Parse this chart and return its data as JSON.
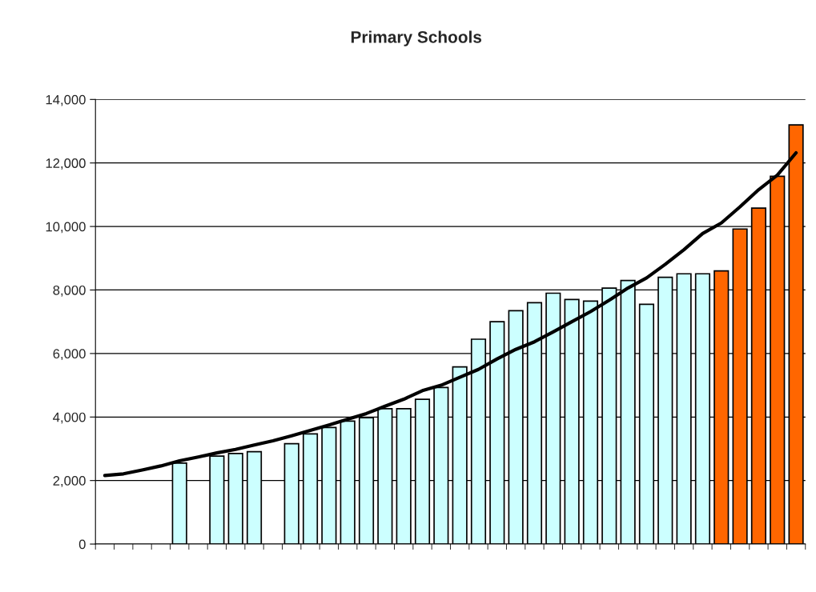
{
  "chart_data": {
    "type": "bar",
    "title": "Primary Schools",
    "categories": [
      null,
      null,
      null,
      null,
      null,
      null,
      null,
      null,
      null,
      null,
      null,
      null,
      null,
      null,
      null,
      null,
      null,
      null,
      null,
      null,
      null,
      null,
      null,
      null,
      null,
      null,
      null,
      null,
      null,
      null,
      null,
      null,
      null,
      null,
      null,
      null,
      null,
      null
    ],
    "series": [
      {
        "colors": [
          "#ccffff",
          "#ccffff",
          "#ccffff",
          "#ccffff",
          "#ccffff",
          "#ccffff",
          "#ccffff",
          "#ccffff",
          "#ccffff",
          "#ccffff",
          "#ccffff",
          "#ccffff",
          "#ccffff",
          "#ccffff",
          "#ccffff",
          "#ccffff",
          "#ccffff",
          "#ccffff",
          "#ccffff",
          "#ccffff",
          "#ccffff",
          "#ccffff",
          "#ccffff",
          "#ccffff",
          "#ccffff",
          "#ccffff",
          "#ccffff",
          "#ccffff",
          "#ccffff",
          "#ccffff",
          "#ccffff",
          "#ccffff",
          "#ccffff",
          "#ff6600",
          "#ff6600",
          "#ff6600",
          "#ff6600",
          "#ff6600"
        ],
        "values": [
          null,
          null,
          null,
          null,
          2550,
          null,
          2770,
          2850,
          2910,
          null,
          3160,
          3470,
          3670,
          3870,
          3980,
          4260,
          4260,
          4560,
          4930,
          5580,
          6450,
          7000,
          7350,
          7600,
          7900,
          7700,
          7650,
          8060,
          8300,
          7550,
          8400,
          8510,
          8510,
          8600,
          9920,
          10580,
          11580,
          13200
        ]
      },
      {
        "type": "line",
        "color": "#000000",
        "values": [
          2160,
          2210,
          2330,
          2460,
          2620,
          2740,
          2870,
          2980,
          3120,
          3250,
          3410,
          3580,
          3750,
          3930,
          4110,
          4340,
          4560,
          4830,
          5000,
          5250,
          5500,
          5830,
          6130,
          6370,
          6680,
          7000,
          7320,
          7680,
          8060,
          8380,
          8810,
          9270,
          9780,
          10110,
          10620,
          11160,
          11620,
          12320
        ]
      }
    ],
    "ylim": [
      0,
      14000
    ],
    "yticks": [
      {
        "value": 0,
        "label": "0"
      },
      {
        "value": 2000,
        "label": "2,000"
      },
      {
        "value": 4000,
        "label": "4,000"
      },
      {
        "value": 6000,
        "label": "6,000"
      },
      {
        "value": 8000,
        "label": "8,000"
      },
      {
        "value": 10000,
        "label": "10,000"
      },
      {
        "value": 12000,
        "label": "12,000"
      },
      {
        "value": 14000,
        "label": "14,000"
      }
    ],
    "grid": "y",
    "legend": false
  }
}
